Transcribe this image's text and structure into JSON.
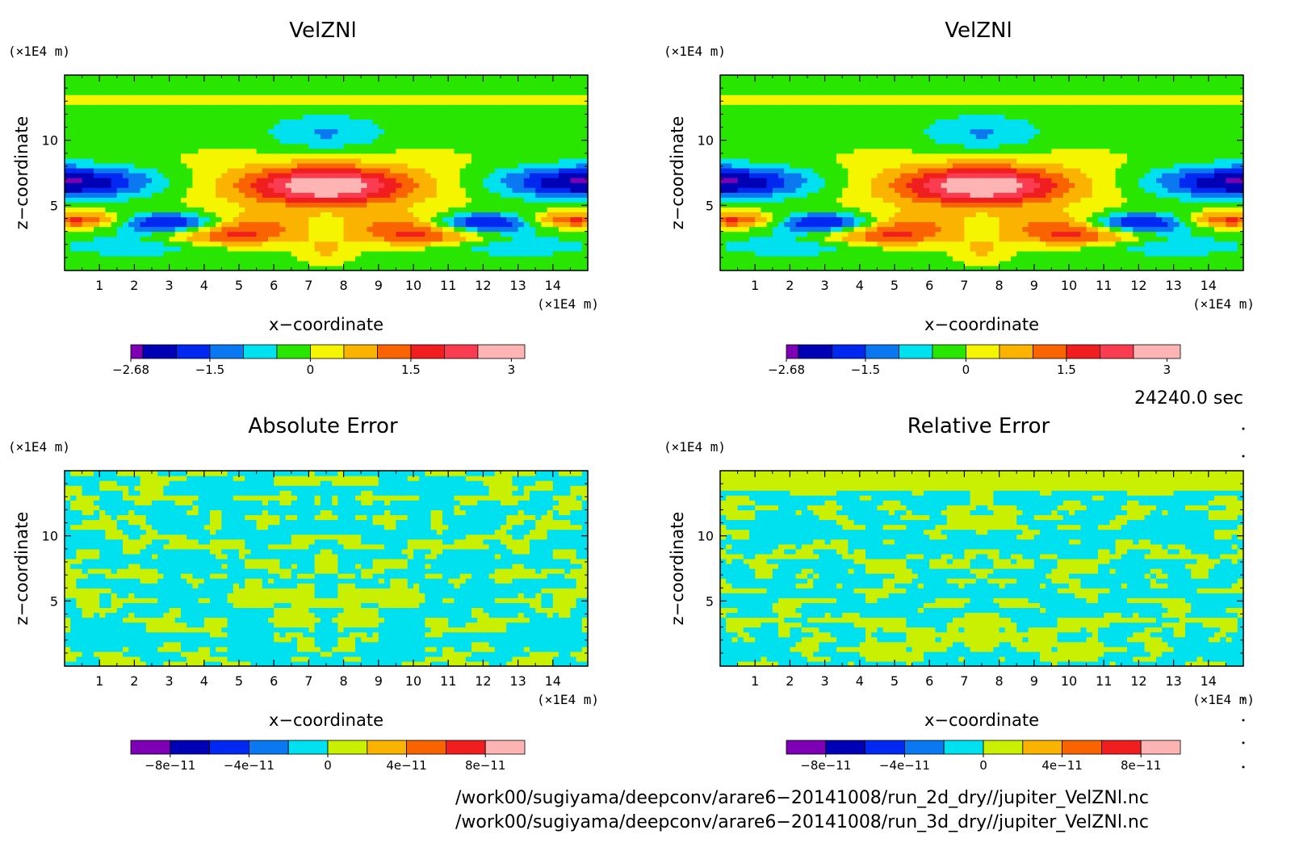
{
  "chart_data": [
    {
      "type": "heatmap",
      "title": "VelZNl",
      "xlabel": "x−coordinate",
      "ylabel": "z−coordinate",
      "x_unit": "(×1E4 m)",
      "y_unit": "(×1E4 m)",
      "x_ticks": [
        "1",
        "2",
        "3",
        "4",
        "5",
        "6",
        "7",
        "8",
        "9",
        "10",
        "11",
        "12",
        "13",
        "14"
      ],
      "y_ticks": [
        "5",
        "10"
      ],
      "xlim": [
        0,
        15
      ],
      "ylim": [
        0,
        15
      ],
      "colorbar": {
        "labels": [
          "−2.68",
          "−1.5",
          "0",
          "1.5",
          "3"
        ],
        "label_values": [
          -2.68,
          -1.5,
          0,
          1.5,
          3
        ],
        "range": [
          -2.68,
          3
        ],
        "colors": [
          "#7d00b4",
          "#0000b4",
          "#0028f0",
          "#0a78f0",
          "#00e1f0",
          "#28e600",
          "#f5f500",
          "#fab400",
          "#fa6400",
          "#f01e1e",
          "#fa3c50",
          "#ffb4b4"
        ]
      }
    },
    {
      "type": "heatmap",
      "title": "VelZNl",
      "xlabel": "x−coordinate",
      "ylabel": "z−coordinate",
      "x_unit": "(×1E4 m)",
      "y_unit": "(×1E4 m)",
      "x_ticks": [
        "1",
        "2",
        "3",
        "4",
        "5",
        "6",
        "7",
        "8",
        "9",
        "10",
        "11",
        "12",
        "13",
        "14"
      ],
      "y_ticks": [
        "5",
        "10"
      ],
      "xlim": [
        0,
        15
      ],
      "ylim": [
        0,
        15
      ],
      "colorbar": {
        "labels": [
          "−2.68",
          "−1.5",
          "0",
          "1.5",
          "3"
        ],
        "label_values": [
          -2.68,
          -1.5,
          0,
          1.5,
          3
        ],
        "range": [
          -2.68,
          3
        ],
        "colors": [
          "#7d00b4",
          "#0000b4",
          "#0028f0",
          "#0a78f0",
          "#00e1f0",
          "#28e600",
          "#f5f500",
          "#fab400",
          "#fa6400",
          "#f01e1e",
          "#fa3c50",
          "#ffb4b4"
        ]
      }
    },
    {
      "type": "heatmap",
      "title": "Absolute Error",
      "xlabel": "x−coordinate",
      "ylabel": "z−coordinate",
      "x_unit": "(×1E4 m)",
      "y_unit": "(×1E4 m)",
      "x_ticks": [
        "1",
        "2",
        "3",
        "4",
        "5",
        "6",
        "7",
        "8",
        "9",
        "10",
        "11",
        "12",
        "13",
        "14"
      ],
      "y_ticks": [
        "5",
        "10"
      ],
      "xlim": [
        0,
        15
      ],
      "ylim": [
        0,
        15
      ],
      "colorbar": {
        "labels": [
          "−8e−11",
          "−4e−11",
          "0",
          "4e−11",
          "8e−11"
        ],
        "label_values": [
          -8e-11,
          -4e-11,
          0,
          4e-11,
          8e-11
        ],
        "range": [
          -1e-10,
          1e-10
        ],
        "colors": [
          "#7d00b4",
          "#0000b4",
          "#0028f0",
          "#0a78f0",
          "#00e1f0",
          "#c8f000",
          "#fab400",
          "#fa6400",
          "#f01e1e",
          "#ffb4b4"
        ]
      }
    },
    {
      "type": "heatmap",
      "title": "Relative Error",
      "xlabel": "x−coordinate",
      "ylabel": "z−coordinate",
      "x_unit": "(×1E4 m)",
      "y_unit": "(×1E4 m)",
      "x_ticks": [
        "1",
        "2",
        "3",
        "4",
        "5",
        "6",
        "7",
        "8",
        "9",
        "10",
        "11",
        "12",
        "13",
        "14"
      ],
      "y_ticks": [
        "5",
        "10"
      ],
      "xlim": [
        0,
        15
      ],
      "ylim": [
        0,
        15
      ],
      "colorbar": {
        "labels": [
          "−8e−11",
          "−4e−11",
          "0",
          "4e−11",
          "8e−11"
        ],
        "label_values": [
          -8e-11,
          -4e-11,
          0,
          4e-11,
          8e-11
        ],
        "range": [
          -1e-10,
          1e-10
        ],
        "colors": [
          "#7d00b4",
          "#0000b4",
          "#0028f0",
          "#0a78f0",
          "#00e1f0",
          "#c8f000",
          "#fab400",
          "#fa6400",
          "#f01e1e",
          "#ffb4b4"
        ]
      }
    }
  ],
  "time_label": "24240.0 sec",
  "footer": {
    "line1": "/work00/sugiyama/deepconv/arare6−20141008/run_2d_dry//jupiter_VelZNl.nc",
    "line2": "/work00/sugiyama/deepconv/arare6−20141008/run_3d_dry//jupiter_VelZNl.nc"
  }
}
